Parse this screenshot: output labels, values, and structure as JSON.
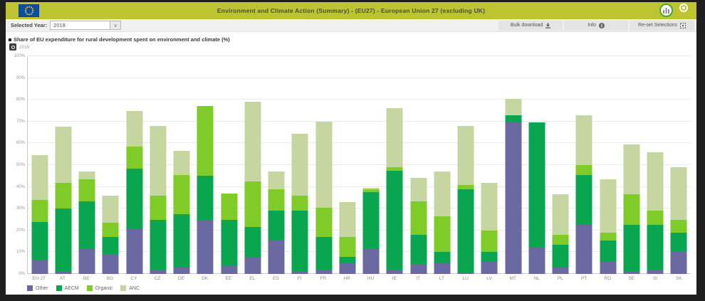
{
  "header": {
    "title": "Environment and Climate Action (Summary) - (EU27) - European Union 27 (excluding UK)"
  },
  "toolbar": {
    "selected_year_label": "Selected Year:",
    "selected_year_value": "2018",
    "bulk_download_label": "Bulk download",
    "info_label": "Info",
    "reset_selections_label": "Re-set Selections"
  },
  "chart_header": {
    "title": "Share of EU expenditure for rural development spent on environment and climate (%)",
    "snapshot_label": "2018"
  },
  "icons": {
    "eu_flag": "eu-flag",
    "selections_tool": "selections-tool-icon",
    "target": "target-icon",
    "download": "download-icon",
    "info": "info-icon",
    "reset": "reset-selections-icon",
    "camera": "camera-icon",
    "dropdown": "chevron-down-icon"
  },
  "colors": {
    "header_bg": "#bcc531",
    "other": "#6a69a1",
    "aecm": "#0aa64f",
    "organic": "#7fcb27",
    "anc": "#c5d6a0"
  },
  "chart_data": {
    "type": "bar",
    "stacked": true,
    "title": "Share of EU expenditure for rural development spent on environment and climate (%)",
    "xlabel": "",
    "ylabel": "",
    "ylim": [
      0,
      100
    ],
    "y_ticks": [
      "0%",
      "10%",
      "20%",
      "30%",
      "40%",
      "50%",
      "60%",
      "70%",
      "80%",
      "90%",
      "100%"
    ],
    "grid": true,
    "legend_position": "bottom-left",
    "categories": [
      "EU-27",
      "AT",
      "BE",
      "BG",
      "CY",
      "CZ",
      "DE",
      "DK",
      "EE",
      "EL",
      "ES",
      "FI",
      "FR",
      "HR",
      "HU",
      "IE",
      "IT",
      "LT",
      "LU",
      "LV",
      "MT",
      "NL",
      "PL",
      "PT",
      "RO",
      "SE",
      "SI",
      "SK"
    ],
    "series": [
      {
        "name": "Other",
        "color": "#6a69a1",
        "values": [
          6.5,
          1,
          11.5,
          9,
          21,
          2,
          3,
          25,
          4,
          7.5,
          15.5,
          1,
          2,
          5,
          11.5,
          2,
          4.5,
          5,
          0.5,
          5.5,
          69.5,
          12,
          3,
          22.5,
          5.5,
          1,
          2,
          10.5
        ]
      },
      {
        "name": "AECM",
        "color": "#0aa64f",
        "values": [
          17.5,
          29,
          22,
          8,
          27.5,
          23,
          24.5,
          20,
          21,
          14,
          13.5,
          28,
          15,
          3,
          26,
          45.5,
          13.5,
          5,
          38.5,
          4.5,
          3.5,
          57.5,
          10.5,
          23,
          10,
          21.5,
          20.5,
          8.5
        ]
      },
      {
        "name": "Organic",
        "color": "#7fcb27",
        "values": [
          10,
          12,
          10,
          6.5,
          10,
          11,
          18,
          32,
          12,
          21,
          10,
          7,
          13.5,
          9,
          1.5,
          1.5,
          15.5,
          16.5,
          2,
          10,
          0,
          0,
          4.5,
          4.5,
          3.5,
          14,
          6.5,
          6
        ]
      },
      {
        "name": "ANC",
        "color": "#c5d6a0",
        "values": [
          20.5,
          25.5,
          3.5,
          12.5,
          16.5,
          32,
          11,
          0,
          0,
          36.5,
          8,
          28.5,
          39.5,
          16,
          0.5,
          27,
          10.5,
          20.5,
          27,
          22,
          7.5,
          0,
          18.5,
          23,
          24.5,
          23,
          27,
          24
        ]
      }
    ]
  }
}
